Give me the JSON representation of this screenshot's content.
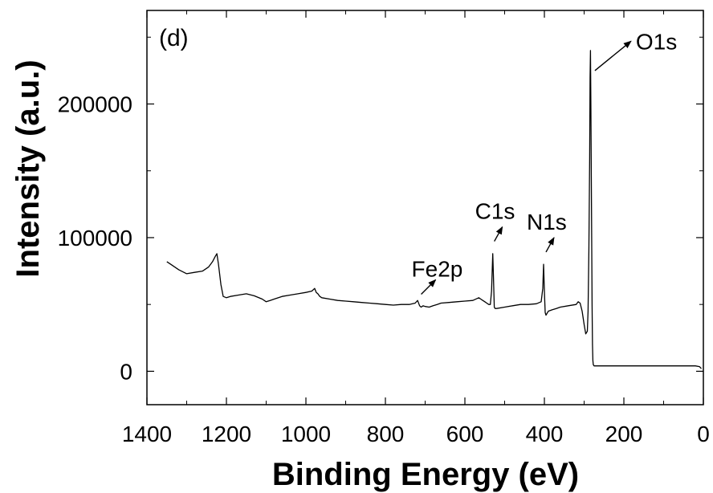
{
  "chart_data": {
    "type": "line",
    "panel_label": "(d)",
    "xlabel": "Binding Energy (eV)",
    "ylabel": "Intensity (a.u.)",
    "xlim": [
      1400,
      0
    ],
    "ylim": [
      -25000,
      270000
    ],
    "x_reversed": true,
    "x_ticks": [
      1400,
      1200,
      1000,
      800,
      600,
      400,
      200,
      0
    ],
    "y_ticks": [
      0,
      100000,
      200000
    ],
    "grid": false,
    "series": [
      {
        "x": [
          1350,
          1340,
          1320,
          1300,
          1280,
          1260,
          1245,
          1235,
          1228,
          1224,
          1220,
          1214,
          1208,
          1200,
          1190,
          1170,
          1150,
          1130,
          1110,
          1100,
          1090,
          1080,
          1060,
          1040,
          1020,
          1000,
          985,
          978,
          974,
          970,
          965,
          960,
          940,
          920,
          900,
          880,
          860,
          840,
          820,
          800,
          780,
          760,
          740,
          725,
          719,
          714,
          710,
          705,
          700,
          690,
          680,
          670,
          660,
          640,
          620,
          600,
          580,
          565,
          560,
          555,
          550,
          545,
          540,
          536,
          533,
          530,
          528,
          526,
          524,
          520,
          500,
          480,
          460,
          440,
          420,
          408,
          404,
          402,
          400,
          398,
          396,
          394,
          390,
          380,
          370,
          360,
          340,
          320,
          315,
          310,
          305,
          300,
          296,
          292,
          290,
          288,
          286,
          285,
          284,
          283,
          282,
          281,
          280,
          279,
          278,
          277,
          276,
          275,
          274,
          272,
          260,
          240,
          220,
          200,
          180,
          160,
          140,
          120,
          100,
          80,
          60,
          40,
          20,
          10,
          5
        ],
        "y": [
          82000,
          80000,
          76000,
          73000,
          74000,
          75000,
          78000,
          82000,
          86000,
          88000,
          80000,
          65000,
          56000,
          55000,
          56000,
          57000,
          58000,
          56500,
          54000,
          52000,
          53000,
          54000,
          56000,
          57000,
          58000,
          59000,
          60000,
          62000,
          59000,
          58000,
          56000,
          55000,
          54000,
          53000,
          52500,
          52000,
          51500,
          51000,
          50500,
          50000,
          49500,
          50000,
          50000,
          51000,
          53000,
          49000,
          48000,
          49000,
          48500,
          48000,
          49000,
          50000,
          51000,
          51500,
          52000,
          52500,
          53000,
          55000,
          54000,
          53000,
          52000,
          51000,
          50000,
          50000,
          60000,
          88000,
          70000,
          48000,
          47000,
          47000,
          48000,
          49000,
          50000,
          50000,
          50500,
          52000,
          62000,
          80000,
          60000,
          44000,
          42000,
          43000,
          45000,
          46000,
          47000,
          48000,
          49000,
          50000,
          52000,
          51000,
          45000,
          35000,
          28000,
          30000,
          45000,
          90000,
          160000,
          220000,
          240000,
          200000,
          150000,
          100000,
          50000,
          20000,
          8000,
          5000,
          4500,
          4000,
          4000,
          4000,
          4000,
          4000,
          4000,
          4000,
          4000,
          4000,
          4000,
          4000,
          4000,
          4000,
          4000,
          4000,
          4000,
          3500,
          2000
        ]
      }
    ],
    "annotations": [
      {
        "text": "Fe2p",
        "x": 710
      },
      {
        "text": "C1s",
        "x": 530
      },
      {
        "text": "N1s",
        "x": 400
      },
      {
        "text": "O1s",
        "x": 283
      }
    ]
  }
}
